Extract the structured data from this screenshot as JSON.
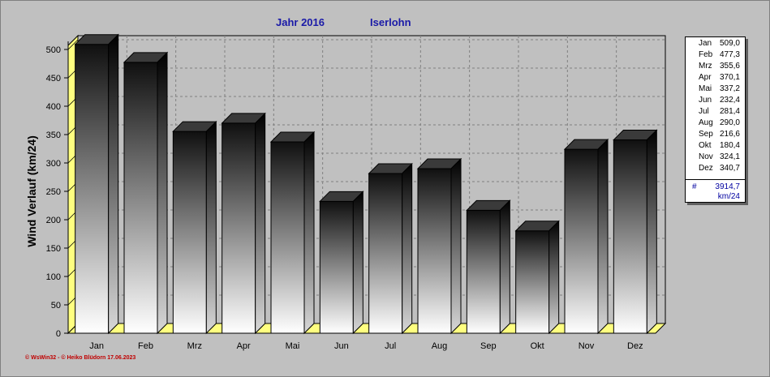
{
  "header": {
    "year_label": "Jahr  2016",
    "location": "Iserlohn"
  },
  "chart_data": {
    "type": "bar",
    "title": "Jahr  2016",
    "subtitle": "Iserlohn",
    "ylabel": "Wind Verlauf  (km/24)",
    "xlabel": "",
    "ylim": [
      0,
      500
    ],
    "yticks": [
      "0",
      "50",
      "100",
      "150",
      "200",
      "250",
      "300",
      "350",
      "400",
      "450",
      "500"
    ],
    "categories": [
      "Jan",
      "Feb",
      "Mrz",
      "Apr",
      "Mai",
      "Jun",
      "Jul",
      "Aug",
      "Sep",
      "Okt",
      "Nov",
      "Dez"
    ],
    "values": [
      509.0,
      477.3,
      355.6,
      370.1,
      337.2,
      232.4,
      281.4,
      290.0,
      216.6,
      180.4,
      324.1,
      340.7
    ],
    "grid": true,
    "legend_position": "right"
  },
  "legend": {
    "rows": [
      {
        "month": "Jan",
        "value": "509,0"
      },
      {
        "month": "Feb",
        "value": "477,3"
      },
      {
        "month": "Mrz",
        "value": "355,6"
      },
      {
        "month": "Apr",
        "value": "370,1"
      },
      {
        "month": "Mai",
        "value": "337,2"
      },
      {
        "month": "Jun",
        "value": "232,4"
      },
      {
        "month": "Jul",
        "value": "281,4"
      },
      {
        "month": "Aug",
        "value": "290,0"
      },
      {
        "month": "Sep",
        "value": "216,6"
      },
      {
        "month": "Okt",
        "value": "180,4"
      },
      {
        "month": "Nov",
        "value": "324,1"
      },
      {
        "month": "Dez",
        "value": "340,7"
      }
    ],
    "total_symbol": "#",
    "total_value": "3914,7",
    "total_unit": "km/24"
  },
  "footer": {
    "credits": "© WsWin32  -  © Heiko Blüdorn  17.06.2023"
  },
  "colors": {
    "title": "#1a1aa8",
    "footer": "#c00000",
    "floor": "#ffff80",
    "grid": "#808080"
  }
}
